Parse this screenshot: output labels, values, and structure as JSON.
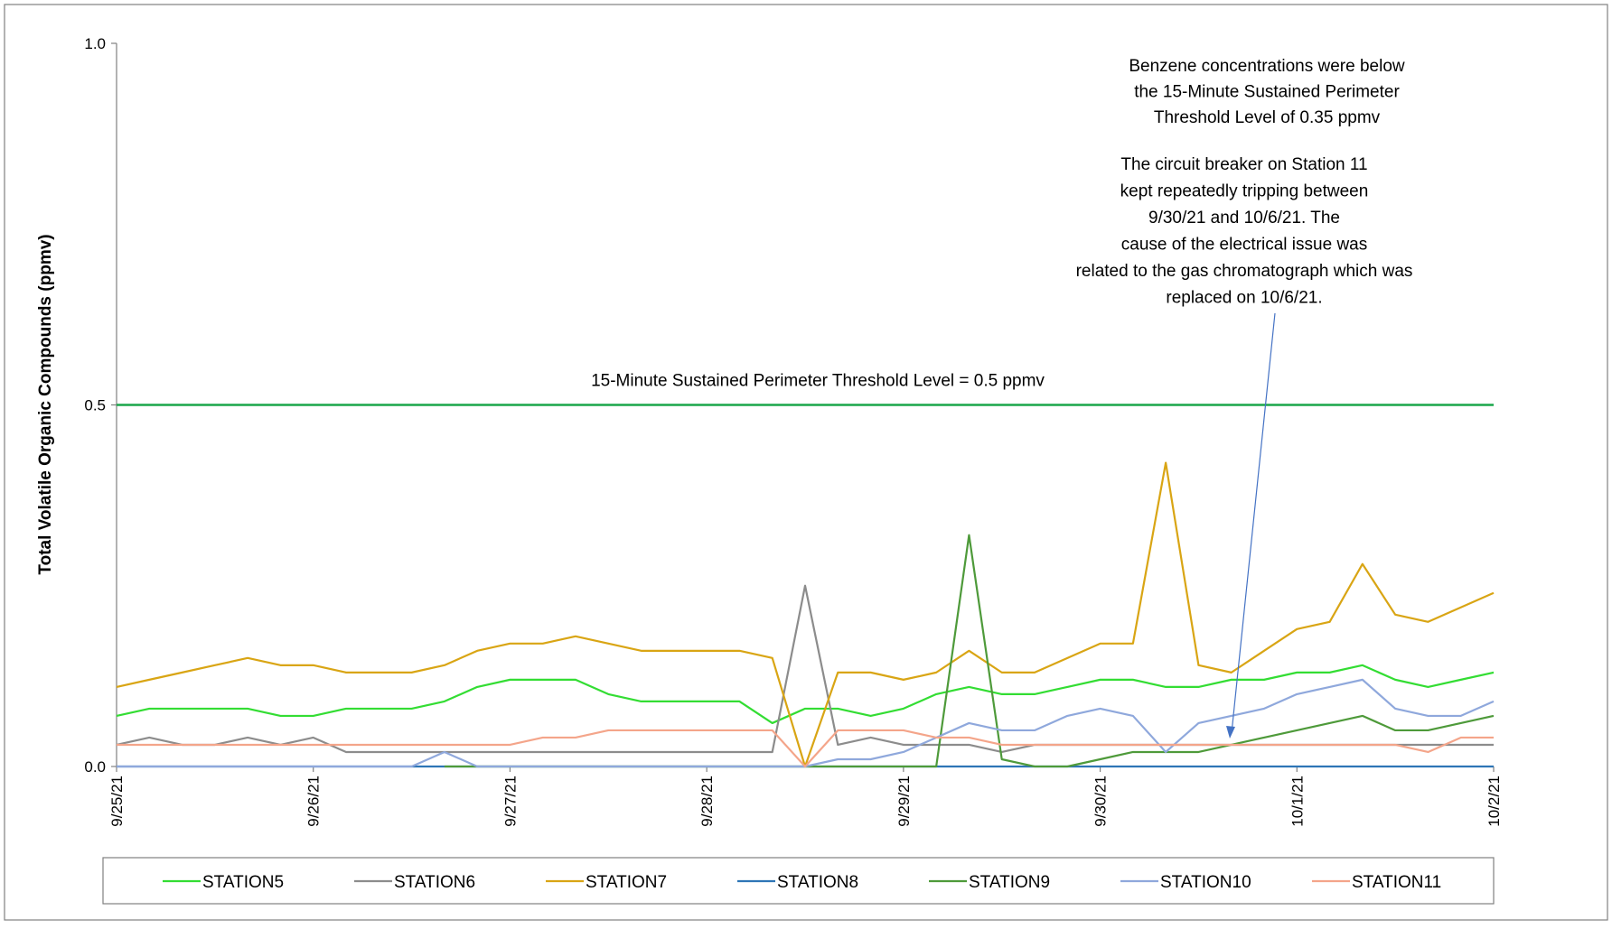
{
  "chart_data": {
    "type": "line",
    "ylabel": "Total Volatile Organic Compounds (ppmv)",
    "categories": [
      "9/25/21",
      null,
      null,
      null,
      null,
      null,
      "9/26/21",
      null,
      null,
      null,
      null,
      null,
      "9/27/21",
      null,
      null,
      null,
      null,
      null,
      "9/28/21",
      null,
      null,
      null,
      null,
      null,
      "9/29/21",
      null,
      null,
      null,
      null,
      null,
      "9/30/21",
      null,
      null,
      null,
      null,
      null,
      "10/1/21",
      null,
      null,
      null,
      null,
      null,
      "10/2/21"
    ],
    "ylim": [
      0,
      1
    ],
    "yticks": [
      {
        "value": 0,
        "label": "0.0"
      },
      {
        "value": 0.5,
        "label": "0.5"
      },
      {
        "value": 1,
        "label": "1.0"
      }
    ],
    "threshold": {
      "value": 0.5,
      "label": "15-Minute Sustained Perimeter Threshold Level = 0.5 ppmv",
      "color": "#1aa64a"
    },
    "annotations": [
      {
        "lines": [
          "Benzene concentrations were below",
          "the 15-Minute Sustained Perimeter",
          "Threshold Level of 0.35 ppmv"
        ]
      },
      {
        "lines": [
          "The circuit breaker on Station 11",
          "kept repeatedly tripping between",
          "9/30/21 and 10/6/21.  The",
          "cause of the electrical issue was",
          "related to the gas chromatograph which was",
          "replaced on 10/6/21."
        ]
      }
    ],
    "series": [
      {
        "name": "STATION5",
        "color": "#33dd33",
        "values": [
          0.07,
          0.08,
          0.08,
          0.08,
          0.08,
          0.07,
          0.07,
          0.08,
          0.08,
          0.08,
          0.09,
          0.11,
          0.12,
          0.12,
          0.12,
          0.1,
          0.09,
          0.09,
          0.09,
          0.09,
          0.06,
          0.08,
          0.08,
          0.07,
          0.08,
          0.1,
          0.11,
          0.1,
          0.1,
          0.11,
          0.12,
          0.12,
          0.11,
          0.11,
          0.12,
          0.12,
          0.13,
          0.13,
          0.14,
          0.12,
          0.11,
          0.12,
          0.13
        ]
      },
      {
        "name": "STATION6",
        "color": "#8c8c8c",
        "values": [
          0.03,
          0.04,
          0.03,
          0.03,
          0.04,
          0.03,
          0.04,
          0.02,
          0.02,
          0.02,
          0.02,
          0.02,
          0.02,
          0.02,
          0.02,
          0.02,
          0.02,
          0.02,
          0.02,
          0.02,
          0.02,
          0.25,
          0.03,
          0.04,
          0.03,
          0.03,
          0.03,
          0.02,
          0.03,
          0.03,
          0.03,
          0.03,
          0.03,
          0.03,
          0.03,
          0.03,
          0.03,
          0.03,
          0.03,
          0.03,
          0.03,
          0.03,
          0.03
        ]
      },
      {
        "name": "STATION7",
        "color": "#d9a514",
        "values": [
          0.11,
          0.12,
          0.13,
          0.14,
          0.15,
          0.14,
          0.14,
          0.13,
          0.13,
          0.13,
          0.14,
          0.16,
          0.17,
          0.17,
          0.18,
          0.17,
          0.16,
          0.16,
          0.16,
          0.16,
          0.15,
          0,
          0.13,
          0.13,
          0.12,
          0.13,
          0.16,
          0.13,
          0.13,
          0.15,
          0.17,
          0.17,
          0.42,
          0.14,
          0.13,
          0.16,
          0.19,
          0.2,
          0.28,
          0.21,
          0.2,
          0.22,
          0.24
        ]
      },
      {
        "name": "STATION8",
        "color": "#2e75b6",
        "values": [
          0,
          0,
          0,
          0,
          0,
          0,
          0,
          0,
          0,
          0,
          0,
          0,
          0,
          0,
          0,
          0,
          0,
          0,
          0,
          0,
          0,
          0,
          0,
          0,
          0,
          0,
          0,
          0,
          0,
          0,
          0,
          0,
          0,
          0,
          0,
          0,
          0,
          0,
          0,
          0,
          0,
          0,
          0
        ]
      },
      {
        "name": "STATION9",
        "color": "#4e9a3a",
        "values": [
          null,
          null,
          null,
          null,
          null,
          null,
          null,
          null,
          null,
          null,
          0,
          0,
          0,
          0,
          0,
          0,
          0,
          0,
          0,
          0,
          0,
          0,
          0,
          0,
          0,
          0,
          0.32,
          0.01,
          0,
          0,
          0.01,
          0.02,
          0.02,
          0.02,
          0.03,
          0.04,
          0.05,
          0.06,
          0.07,
          0.05,
          0.05,
          0.06,
          0.07
        ]
      },
      {
        "name": "STATION10",
        "color": "#8fa8dc",
        "values": [
          0,
          0,
          0,
          0,
          0,
          0,
          0,
          0,
          0,
          0,
          0.02,
          0,
          0,
          0,
          0,
          0,
          0,
          0,
          0,
          0,
          0,
          0,
          0.01,
          0.01,
          0.02,
          0.04,
          0.06,
          0.05,
          0.05,
          0.07,
          0.08,
          0.07,
          0.02,
          0.06,
          0.07,
          0.08,
          0.1,
          0.11,
          0.12,
          0.08,
          0.07,
          0.07,
          0.09
        ]
      },
      {
        "name": "STATION11",
        "color": "#f4a58a",
        "values": [
          0.03,
          0.03,
          0.03,
          0.03,
          0.03,
          0.03,
          0.03,
          0.03,
          0.03,
          0.03,
          0.03,
          0.03,
          0.03,
          0.04,
          0.04,
          0.05,
          0.05,
          0.05,
          0.05,
          0.05,
          0.05,
          0,
          0.05,
          0.05,
          0.05,
          0.04,
          0.04,
          0.03,
          0.03,
          0.03,
          0.03,
          0.03,
          0.03,
          0.03,
          0.03,
          0.03,
          0.03,
          0.03,
          0.03,
          0.03,
          0.02,
          0.04,
          0.04
        ]
      }
    ]
  }
}
